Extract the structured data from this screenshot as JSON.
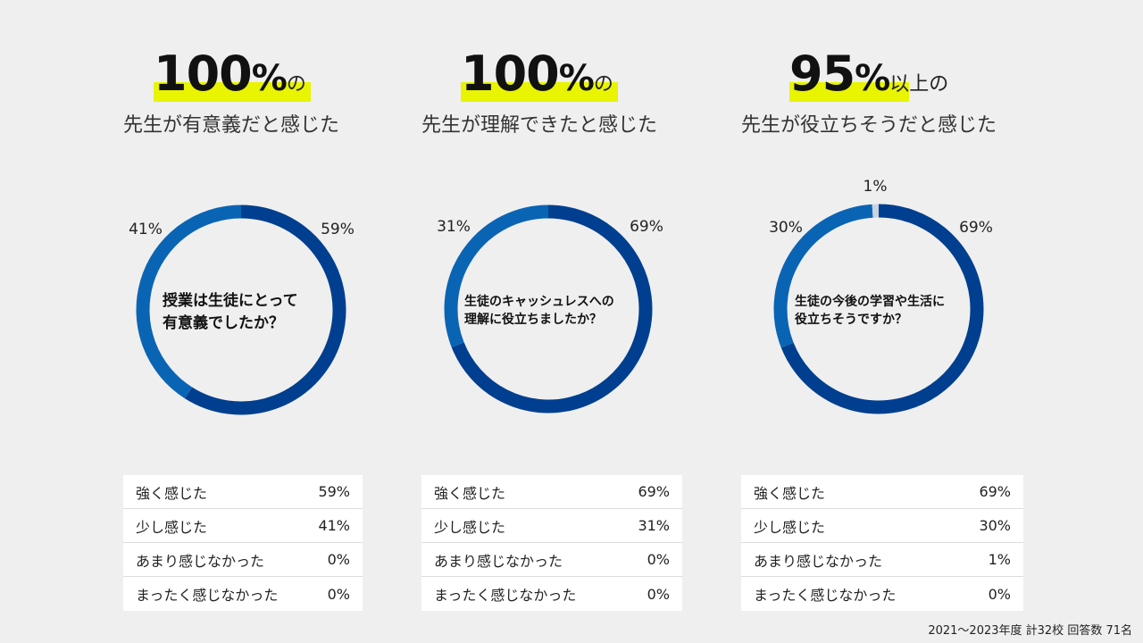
{
  "footer": "2021～2023年度 計32校 回答数 71名",
  "panels": [
    {
      "headline": {
        "number": "100",
        "percent": "%",
        "suffix": "の"
      },
      "subline": "先生が有意義だと感じた",
      "question": [
        "授業は生徒にとって",
        "有意義でしたか？"
      ],
      "table": [
        {
          "label": "強く感じた",
          "value": "59%"
        },
        {
          "label": "少し感じた",
          "value": "41%"
        },
        {
          "label": "あまり感じなかった",
          "value": "0%"
        },
        {
          "label": "まったく感じなかった",
          "value": "0%"
        }
      ]
    },
    {
      "headline": {
        "number": "100",
        "percent": "%",
        "suffix": "の"
      },
      "subline": "先生が理解できたと感じた",
      "question": [
        "生徒のキャッシュレスへの",
        "理解に役立ちましたか？"
      ],
      "table": [
        {
          "label": "強く感じた",
          "value": "69%"
        },
        {
          "label": "少し感じた",
          "value": "31%"
        },
        {
          "label": "あまり感じなかった",
          "value": "0%"
        },
        {
          "label": "まったく感じなかった",
          "value": "0%"
        }
      ]
    },
    {
      "headline": {
        "number": "95",
        "percent": "%",
        "suffix": "以上の"
      },
      "subline": "先生が役立ちそうだと感じた",
      "question": [
        "生徒の今後の学習や生活に",
        "役立ちそうですか？"
      ],
      "table": [
        {
          "label": "強く感じた",
          "value": "69%"
        },
        {
          "label": "少し感じた",
          "value": "30%"
        },
        {
          "label": "あまり感じなかった",
          "value": "1%"
        },
        {
          "label": "まったく感じなかった",
          "value": "0%"
        }
      ]
    }
  ],
  "chart_data": [
    {
      "type": "pie",
      "categories": [
        "強く感じた",
        "少し感じた",
        "あまり感じなかった",
        "まったく感じなかった"
      ],
      "values": [
        59,
        41,
        0,
        0
      ],
      "labels": [
        "59%",
        "41%",
        "",
        ""
      ],
      "colors": [
        "#003f8f",
        "#0a64b4",
        "#c8d4e0",
        "#9aa7b5"
      ]
    },
    {
      "type": "pie",
      "categories": [
        "強く感じた",
        "少し感じた",
        "あまり感じなかった",
        "まったく感じなかった"
      ],
      "values": [
        69,
        31,
        0,
        0
      ],
      "labels": [
        "69%",
        "31%",
        "",
        ""
      ],
      "colors": [
        "#003f8f",
        "#0a64b4",
        "#c8d4e0",
        "#9aa7b5"
      ]
    },
    {
      "type": "pie",
      "categories": [
        "強く感じた",
        "少し感じた",
        "あまり感じなかった",
        "まったく感じなかった"
      ],
      "values": [
        69,
        30,
        1,
        0
      ],
      "labels": [
        "69%",
        "30%",
        "1%",
        ""
      ],
      "colors": [
        "#003f8f",
        "#0a64b4",
        "#c8d4e0",
        "#9aa7b5"
      ]
    }
  ]
}
